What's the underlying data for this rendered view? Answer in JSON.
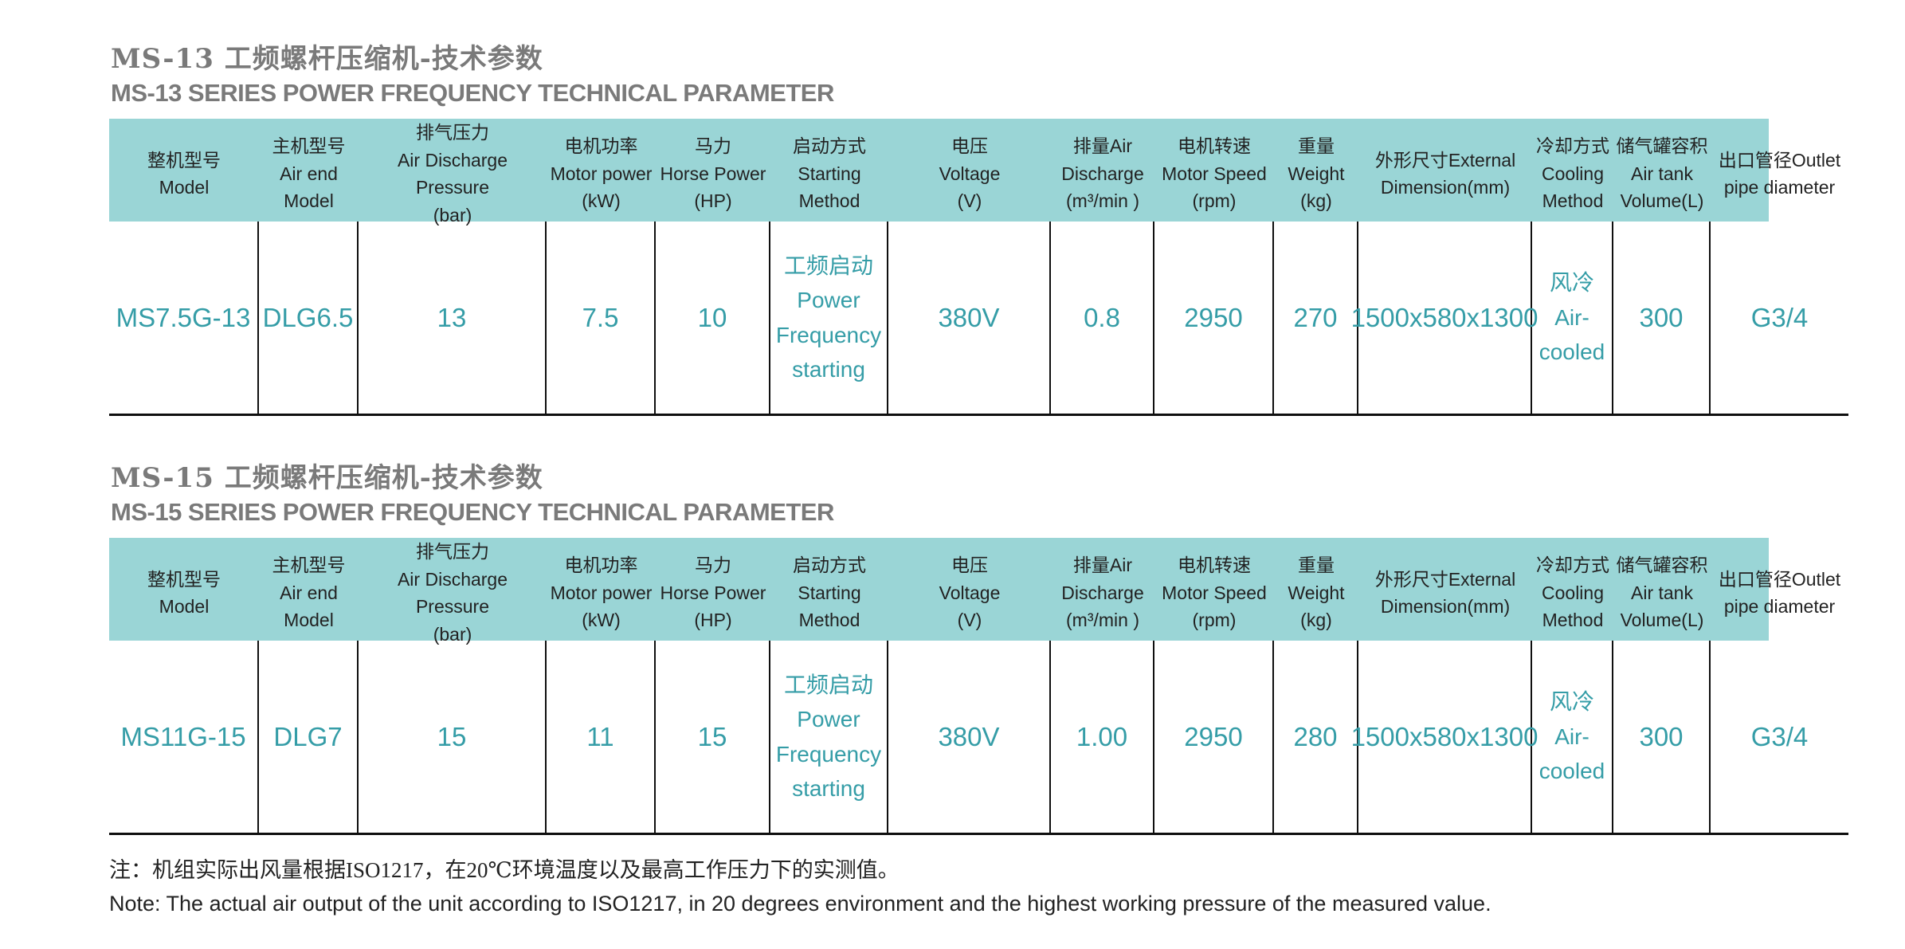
{
  "colors": {
    "header_bg": "#9ad5d6",
    "data_text": "#359da7",
    "title_text": "#7a7a7a",
    "border": "#0f0f0f",
    "note_text": "#222222"
  },
  "columns": [
    "整机型号\nModel",
    "主机型号\nAir end\nModel",
    "排气压力\nAir Discharge Pressure\n(bar)",
    "电机功率\nMotor power\n(kW)",
    "马力\nHorse Power\n(HP)",
    "启动方式\nStarting\nMethod",
    "电压\nVoltage\n(V)",
    "排量Air\nDischarge\n(m³/min )",
    "电机转速\nMotor Speed\n(rpm)",
    "重量\nWeight\n(kg)",
    "外形尺寸External\nDimension(mm)",
    "冷却方式\nCooling\nMethod",
    "储气罐容积\nAir tank\nVolume(L)",
    "出口管径Outlet\npipe diameter"
  ],
  "sections": [
    {
      "title_cn": "MS-13 工频螺杆压缩机-技术参数",
      "title_en": "MS-13 SERIES POWER FREQUENCY TECHNICAL PARAMETER",
      "row": [
        "MS7.5G-13",
        "DLG6.5",
        "13",
        "7.5",
        "10",
        "工频启动\nPower\nFrequency\nstarting",
        "380V",
        "0.8",
        "2950",
        "270",
        "1500x580x1300",
        "风冷\nAir-\ncooled",
        "300",
        "G3/4"
      ]
    },
    {
      "title_cn": "MS-15 工频螺杆压缩机-技术参数",
      "title_en": "MS-15 SERIES POWER FREQUENCY TECHNICAL PARAMETER",
      "row": [
        "MS11G-15",
        "DLG7",
        "15",
        "11",
        "15",
        "工频启动\nPower\nFrequency\nstarting",
        "380V",
        "1.00",
        "2950",
        "280",
        "1500x580x1300",
        "风冷\nAir-\ncooled",
        "300",
        "G3/4"
      ]
    }
  ],
  "notes": {
    "cn": "注：机组实际出风量根据ISO1217，在20℃环境温度以及最高工作压力下的实测值。",
    "en": "Note: The actual air output of the unit according to ISO1217, in 20 degrees environment and the highest working pressure of the measured value."
  }
}
